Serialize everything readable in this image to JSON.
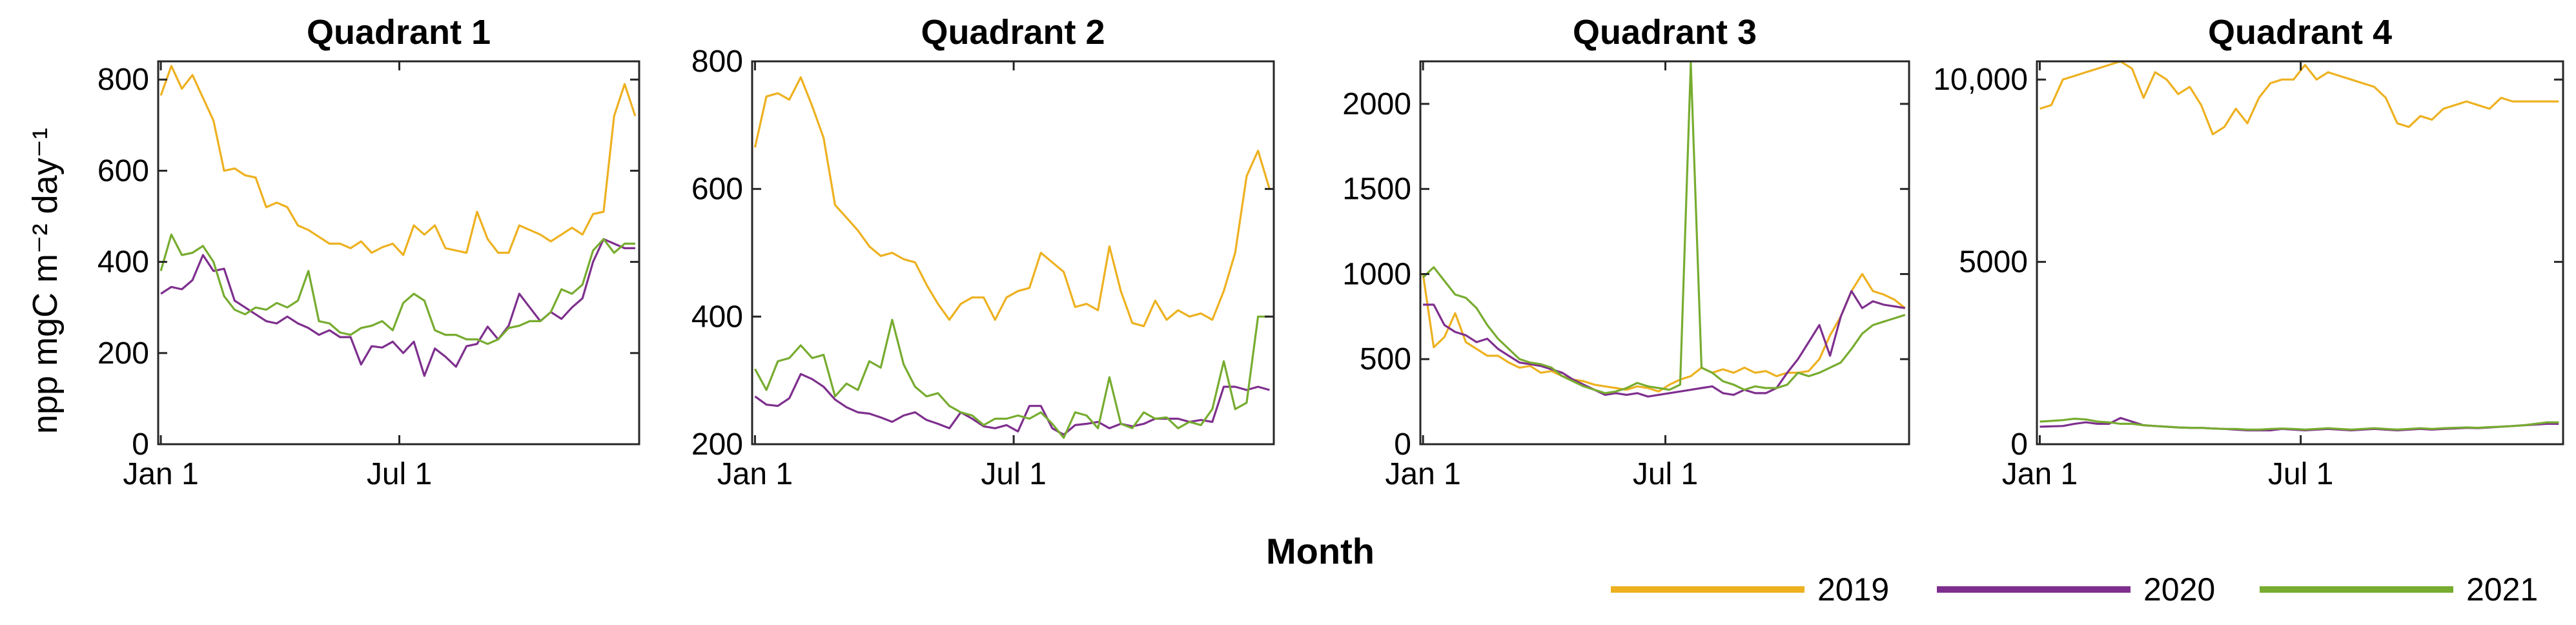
{
  "figure": {
    "xlabel": "Month",
    "ylabel": "npp mgC m⁻² day⁻¹",
    "legend_placement": "bottom-right"
  },
  "colors": {
    "2019": "#EDB120",
    "2020": "#7E2F8E",
    "2021": "#77AC30"
  },
  "chart_data": [
    {
      "type": "line",
      "title": "Quadrant 1",
      "ylim": [
        0,
        840
      ],
      "yticks": [
        0,
        200,
        400,
        600,
        800
      ],
      "ytick_labels": [
        "0",
        "200",
        "400",
        "600",
        "800"
      ],
      "xlim": [
        -2,
        363
      ],
      "xticks": [
        0,
        181
      ],
      "xtick_labels": [
        "Jan 1",
        "Jul 1"
      ],
      "x": [
        0,
        8,
        16,
        24,
        32,
        40,
        48,
        56,
        64,
        72,
        80,
        88,
        96,
        104,
        112,
        120,
        128,
        136,
        144,
        152,
        160,
        168,
        176,
        184,
        192,
        200,
        208,
        216,
        224,
        232,
        240,
        248,
        256,
        264,
        272,
        280,
        288,
        296,
        304,
        312,
        320,
        328,
        336,
        344,
        352,
        360
      ],
      "series": [
        {
          "name": "2019",
          "values": [
            765,
            830,
            780,
            810,
            760,
            710,
            600,
            605,
            590,
            585,
            520,
            530,
            520,
            480,
            470,
            455,
            440,
            440,
            430,
            445,
            420,
            432,
            440,
            415,
            480,
            460,
            480,
            430,
            425,
            420,
            510,
            450,
            420,
            420,
            480,
            470,
            460,
            445,
            460,
            475,
            460,
            505,
            510,
            720,
            790,
            720
          ]
        },
        {
          "name": "2020",
          "values": [
            330,
            345,
            340,
            360,
            415,
            380,
            385,
            315,
            300,
            285,
            270,
            265,
            280,
            265,
            255,
            240,
            250,
            235,
            235,
            175,
            215,
            212,
            225,
            200,
            225,
            150,
            210,
            192,
            170,
            215,
            220,
            258,
            230,
            260,
            330,
            300,
            270,
            290,
            275,
            300,
            320,
            400,
            450,
            440,
            430,
            430
          ]
        },
        {
          "name": "2021",
          "values": [
            380,
            460,
            415,
            420,
            435,
            400,
            325,
            295,
            285,
            300,
            295,
            310,
            300,
            315,
            380,
            270,
            265,
            245,
            240,
            255,
            260,
            270,
            250,
            310,
            330,
            315,
            250,
            240,
            240,
            230,
            230,
            220,
            230,
            255,
            260,
            270,
            270,
            290,
            340,
            330,
            350,
            425,
            450,
            420,
            440,
            440
          ]
        }
      ]
    },
    {
      "type": "line",
      "title": "Quadrant 2",
      "ylim": [
        200,
        800
      ],
      "yticks": [
        200,
        400,
        600,
        800
      ],
      "ytick_labels": [
        "200",
        "400",
        "600",
        "800"
      ],
      "xlim": [
        -2,
        363
      ],
      "xticks": [
        0,
        181
      ],
      "xtick_labels": [
        "Jan 1",
        "Jul 1"
      ],
      "x": [
        0,
        8,
        16,
        24,
        32,
        40,
        48,
        56,
        64,
        72,
        80,
        88,
        96,
        104,
        112,
        120,
        128,
        136,
        144,
        152,
        160,
        168,
        176,
        184,
        192,
        200,
        208,
        216,
        224,
        232,
        240,
        248,
        256,
        264,
        272,
        280,
        288,
        296,
        304,
        312,
        320,
        328,
        336,
        344,
        352,
        360
      ],
      "series": [
        {
          "name": "2019",
          "values": [
            665,
            745,
            750,
            740,
            775,
            730,
            680,
            575,
            555,
            535,
            510,
            495,
            500,
            490,
            485,
            450,
            420,
            395,
            420,
            430,
            430,
            395,
            430,
            440,
            445,
            500,
            485,
            470,
            415,
            420,
            410,
            510,
            440,
            390,
            385,
            425,
            395,
            410,
            400,
            405,
            395,
            440,
            500,
            620,
            660,
            600
          ]
        },
        {
          "name": "2020",
          "values": [
            275,
            262,
            260,
            272,
            310,
            302,
            290,
            270,
            258,
            250,
            248,
            242,
            235,
            245,
            250,
            238,
            232,
            225,
            250,
            240,
            228,
            225,
            230,
            220,
            260,
            260,
            225,
            215,
            230,
            232,
            235,
            225,
            232,
            228,
            232,
            240,
            240,
            240,
            235,
            238,
            235,
            290,
            290,
            285,
            290,
            285
          ]
        },
        {
          "name": "2021",
          "values": [
            318,
            285,
            330,
            335,
            355,
            335,
            340,
            275,
            295,
            285,
            330,
            320,
            395,
            325,
            290,
            275,
            280,
            260,
            250,
            245,
            230,
            240,
            240,
            245,
            240,
            250,
            232,
            210,
            250,
            245,
            225,
            305,
            232,
            225,
            250,
            240,
            242,
            225,
            235,
            230,
            255,
            330,
            255,
            265,
            400,
            400
          ]
        }
      ]
    },
    {
      "type": "line",
      "title": "Quadrant 3",
      "ylim": [
        0,
        2250
      ],
      "yticks": [
        0,
        500,
        1000,
        1500,
        2000
      ],
      "ytick_labels": [
        "0",
        "500",
        "1000",
        "1500",
        "2000"
      ],
      "xlim": [
        -2,
        363
      ],
      "xticks": [
        0,
        181
      ],
      "xtick_labels": [
        "Jan 1",
        "Jul 1"
      ],
      "x": [
        0,
        8,
        16,
        24,
        32,
        40,
        48,
        56,
        64,
        72,
        80,
        88,
        96,
        104,
        112,
        120,
        128,
        136,
        144,
        152,
        160,
        168,
        176,
        184,
        192,
        200,
        208,
        216,
        224,
        232,
        240,
        248,
        256,
        264,
        272,
        280,
        288,
        296,
        304,
        312,
        320,
        328,
        336,
        344,
        352,
        360
      ],
      "series": [
        {
          "name": "2019",
          "values": [
            1000,
            570,
            630,
            770,
            600,
            560,
            520,
            520,
            480,
            450,
            460,
            420,
            430,
            400,
            380,
            370,
            350,
            340,
            330,
            320,
            340,
            330,
            310,
            350,
            380,
            400,
            450,
            420,
            440,
            420,
            450,
            420,
            430,
            400,
            420,
            420,
            430,
            500,
            640,
            750,
            900,
            1000,
            900,
            880,
            850,
            800
          ]
        },
        {
          "name": "2020",
          "values": [
            820,
            820,
            700,
            660,
            640,
            600,
            620,
            560,
            520,
            480,
            470,
            460,
            440,
            420,
            380,
            350,
            320,
            290,
            300,
            290,
            300,
            280,
            290,
            300,
            310,
            320,
            330,
            340,
            300,
            290,
            320,
            300,
            300,
            330,
            420,
            500,
            600,
            700,
            520,
            750,
            900,
            800,
            840,
            820,
            810,
            800
          ]
        },
        {
          "name": "2021",
          "values": [
            980,
            1040,
            960,
            880,
            860,
            800,
            700,
            620,
            560,
            500,
            480,
            470,
            450,
            400,
            370,
            340,
            320,
            300,
            310,
            330,
            360,
            340,
            330,
            320,
            350,
            2240,
            450,
            420,
            370,
            350,
            320,
            340,
            330,
            330,
            350,
            420,
            400,
            420,
            450,
            480,
            560,
            650,
            700,
            720,
            740,
            760
          ]
        }
      ]
    },
    {
      "type": "line",
      "title": "Quadrant 4",
      "ylim": [
        0,
        10500
      ],
      "yticks": [
        0,
        5000,
        10000
      ],
      "ytick_labels": [
        "0",
        "5000",
        "10,000"
      ],
      "xlim": [
        -2,
        363
      ],
      "xticks": [
        0,
        181
      ],
      "xtick_labels": [
        "Jan 1",
        "Jul 1"
      ],
      "x": [
        0,
        8,
        16,
        24,
        32,
        40,
        48,
        56,
        64,
        72,
        80,
        88,
        96,
        104,
        112,
        120,
        128,
        136,
        144,
        152,
        160,
        168,
        176,
        184,
        192,
        200,
        208,
        216,
        224,
        232,
        240,
        248,
        256,
        264,
        272,
        280,
        288,
        296,
        304,
        312,
        320,
        328,
        336,
        344,
        352,
        360
      ],
      "series": [
        {
          "name": "2019",
          "values": [
            9200,
            9300,
            10000,
            10100,
            10200,
            10300,
            10400,
            10500,
            10300,
            9500,
            10200,
            10000,
            9600,
            9800,
            9300,
            8500,
            8700,
            9200,
            8800,
            9500,
            9900,
            10000,
            10000,
            10400,
            10000,
            10200,
            10100,
            10000,
            9900,
            9800,
            9500,
            8800,
            8700,
            9000,
            8900,
            9200,
            9300,
            9400,
            9300,
            9200,
            9500,
            9400,
            9400,
            9400,
            9400,
            9400
          ]
        },
        {
          "name": "2020",
          "values": [
            480,
            490,
            500,
            560,
            600,
            560,
            560,
            720,
            620,
            520,
            500,
            480,
            460,
            450,
            450,
            430,
            420,
            400,
            380,
            380,
            380,
            420,
            400,
            380,
            400,
            420,
            400,
            380,
            400,
            420,
            400,
            380,
            400,
            420,
            400,
            420,
            430,
            450,
            440,
            460,
            480,
            500,
            520,
            540,
            560,
            560
          ]
        },
        {
          "name": "2021",
          "values": [
            620,
            640,
            660,
            700,
            680,
            620,
            600,
            560,
            560,
            520,
            500,
            480,
            460,
            450,
            450,
            430,
            420,
            420,
            400,
            400,
            420,
            430,
            420,
            400,
            420,
            440,
            420,
            400,
            420,
            440,
            420,
            400,
            420,
            440,
            420,
            440,
            450,
            460,
            450,
            470,
            480,
            500,
            520,
            560,
            600,
            600
          ]
        }
      ]
    }
  ]
}
